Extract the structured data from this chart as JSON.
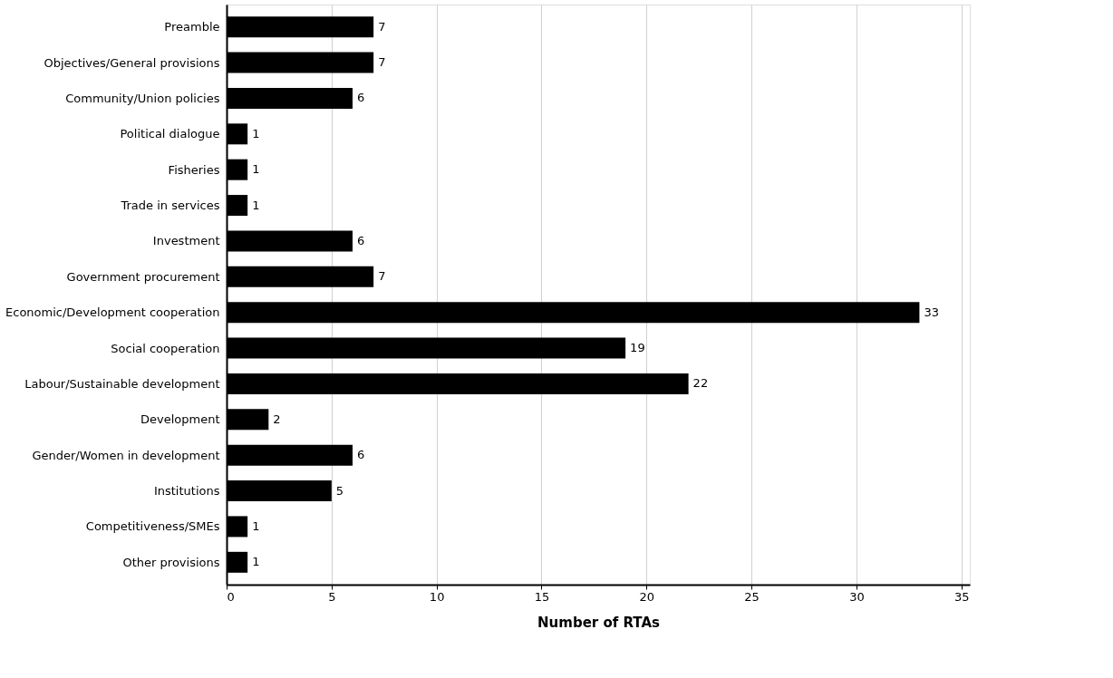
{
  "chart_data": {
    "type": "bar",
    "orientation": "horizontal",
    "xlabel": "Number of RTAs",
    "categories": [
      "Preamble",
      "Objectives/General provisions",
      "Community/Union policies",
      "Political dialogue",
      "Fisheries",
      "Trade in services",
      "Investment",
      "Government procurement",
      "Economic/Development cooperation",
      "Social cooperation",
      "Labour/Sustainable development",
      "Development",
      "Gender/Women in development",
      "Institutions",
      "Competitiveness/SMEs",
      "Other provisions"
    ],
    "values": [
      7,
      7,
      6,
      1,
      1,
      1,
      6,
      7,
      33,
      19,
      22,
      2,
      6,
      5,
      1,
      1
    ],
    "color": "#000000",
    "xlim": [
      0,
      35.4
    ],
    "xticks": [
      0,
      5,
      10,
      15,
      20,
      25,
      30,
      35
    ],
    "grid": "x",
    "data_labels": true
  }
}
